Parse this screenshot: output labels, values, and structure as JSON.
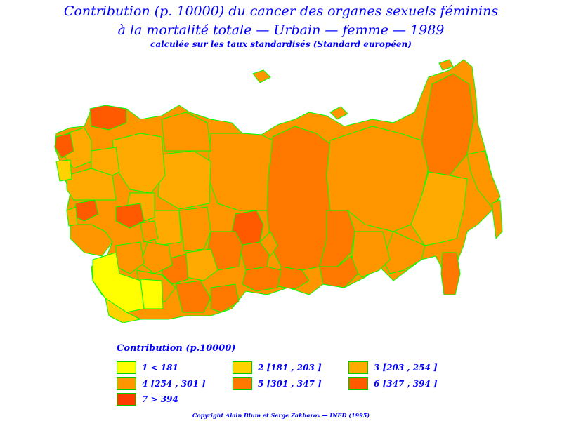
{
  "title": {
    "line1": "Contribution (p. 10000) du cancer des organes sexuels féminins",
    "line2": "à la mortalité totale — Urbain — femme — 1989",
    "line3": "calculée sur les taux standardisés (Standard européen)"
  },
  "legend": {
    "title": "Contribution (p.10000)",
    "items": [
      {
        "label": "1  <  181",
        "color": "#ffff00"
      },
      {
        "label": "2  [181 ,  203 ]",
        "color": "#ffd200"
      },
      {
        "label": "3  [203 ,  254 ]",
        "color": "#ffaa00"
      },
      {
        "label": "4  [254 ,  301 ]",
        "color": "#ff9600"
      },
      {
        "label": "5  [301 ,  347 ]",
        "color": "#ff7800"
      },
      {
        "label": "6  [347 ,  394 ]",
        "color": "#ff5a00"
      },
      {
        "label": "7  >  394",
        "color": "#ff3c00"
      }
    ]
  },
  "map": {
    "border_color": "#00ff00"
  },
  "copyright": "Copyright Alain Blum et Serge Zakharov — INED (1995)"
}
